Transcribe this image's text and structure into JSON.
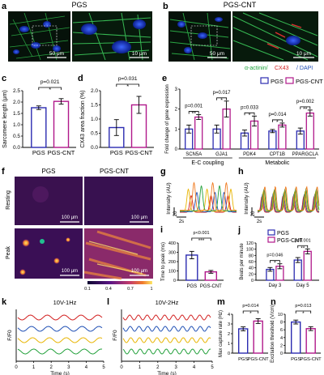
{
  "panel_letters": {
    "a": "a",
    "b": "b",
    "c": "c",
    "d": "d",
    "e": "e",
    "f": "f",
    "g": "g",
    "h": "h",
    "i": "i",
    "j": "j",
    "k": "k",
    "l": "l",
    "m": "m",
    "n": "n"
  },
  "micrographs": {
    "title_pgs": "PGS",
    "title_pgscnt": "PGS-CNT",
    "scale_a_left": "50 μm",
    "scale_a_right": "10 μm",
    "scale_b_left": "50 μm",
    "scale_b_right": "10 μm",
    "legend_actinin": "α-actinin/",
    "legend_cx43": " CX43",
    "legend_dapi": "/ DAPI"
  },
  "legend": {
    "pgs": "PGS",
    "pgscnt": "PGS-CNT"
  },
  "colors": {
    "pgs": "#2b2bb0",
    "pgscnt": "#b0188a",
    "line_red": "#d21f1f",
    "line_blue": "#1f4fb4",
    "line_yellow": "#e8b400",
    "line_green": "#22a03a",
    "line_orange": "#f07a20"
  },
  "calcium": {
    "title_pgs": "PGS",
    "title_pgscnt": "PGS-CNT",
    "row_resting": "Resting",
    "row_peak": "Peak",
    "scale": "100 μm",
    "cbar_ticks": [
      "0.1",
      "0.4",
      "0.7",
      "1"
    ]
  },
  "traces": {
    "ylabel": "Intensity (AU)",
    "tick20": "20",
    "xscale": "2s"
  },
  "pacing": {
    "k_title": "10V-1Hz",
    "l_title": "10V-2Hz",
    "ylabel": "F/F0",
    "xlabel": "Time (s)",
    "xticks": [
      "0",
      "1",
      "2",
      "3",
      "4",
      "5"
    ]
  },
  "chart_data": [
    {
      "panel": "c",
      "type": "bar",
      "categories": [
        "PGS",
        "PGS-CNT"
      ],
      "values": [
        1.75,
        2.03
      ],
      "errors": [
        0.08,
        0.12
      ],
      "ylabel": "Sarcomere length (μm)",
      "ylim": [
        0,
        2.5
      ],
      "yticks": [
        "0.0",
        "0.5",
        "1.0",
        "1.5",
        "2.0",
        "2.5"
      ],
      "annotation": "p=0.021",
      "star": "*"
    },
    {
      "panel": "d",
      "type": "bar",
      "categories": [
        "PGS",
        "PGS-CNT"
      ],
      "values": [
        0.7,
        1.5
      ],
      "errors": [
        0.28,
        0.3
      ],
      "ylabel": "CX43 area fraction (%)",
      "ylim": [
        0,
        2.0
      ],
      "yticks": [
        "0.0",
        "0.5",
        "1.0",
        "1.5",
        "2.0"
      ],
      "annotation": "p=0.031",
      "star": "*"
    },
    {
      "panel": "e",
      "type": "bar",
      "categories": [
        "SCN5A",
        "GJA1",
        "PDK4",
        "CPT1B",
        "PPARGCLA"
      ],
      "series": [
        {
          "name": "PGS",
          "values": [
            1.0,
            1.0,
            0.8,
            0.9,
            0.9
          ]
        },
        {
          "name": "PGS-CNT",
          "values": [
            1.6,
            2.0,
            1.4,
            1.2,
            1.8
          ]
        }
      ],
      "errors": [
        [
          0.2,
          0.2,
          0.15,
          0.08,
          0.15
        ],
        [
          0.12,
          0.4,
          0.25,
          0.1,
          0.15
        ]
      ],
      "ylabel": "Fold change of gene expression",
      "ylim": [
        0,
        3
      ],
      "yticks": [
        "0",
        "1",
        "2",
        "3"
      ],
      "annotations": [
        "p=0.001",
        "p=0.017",
        "p=0.033",
        "p=0.014",
        "p=0.002"
      ],
      "stars": [
        "**",
        "*",
        "*",
        "*",
        "**"
      ],
      "groups": [
        "E-C coupling",
        "Metabolic"
      ]
    },
    {
      "panel": "i",
      "type": "bar",
      "categories": [
        "PGS",
        "PGS-CNT"
      ],
      "values": [
        270,
        90
      ],
      "errors": [
        40,
        15
      ],
      "ylabel": "Time to peak (ms)",
      "ylim": [
        0,
        400
      ],
      "yticks": [
        "0",
        "100",
        "200",
        "300",
        "400"
      ],
      "annotation": "p<0.001",
      "star": "***"
    },
    {
      "panel": "j",
      "type": "bar",
      "categories": [
        "Day 3",
        "Day 5"
      ],
      "series": [
        {
          "name": "PGS",
          "values": [
            35,
            65
          ]
        },
        {
          "name": "PGS-CNT",
          "values": [
            45,
            93
          ]
        }
      ],
      "errors": [
        [
          6,
          8
        ],
        [
          8,
          8
        ]
      ],
      "ylabel": "Beats per minute",
      "ylim": [
        0,
        120
      ],
      "yticks": [
        "0",
        "20",
        "40",
        "60",
        "80",
        "100",
        "120"
      ],
      "annotations": [
        "p=0.046",
        "p=0.001"
      ],
      "stars": [
        "*",
        "**"
      ]
    },
    {
      "panel": "m",
      "type": "bar",
      "categories": [
        "PGS",
        "PGS-CNT"
      ],
      "values": [
        2.5,
        3.3
      ],
      "errors": [
        0.2,
        0.25
      ],
      "ylabel": "Max capture rate (Hz)",
      "ylim": [
        0,
        4
      ],
      "yticks": [
        "0",
        "1",
        "2",
        "3",
        "4"
      ],
      "annotation": "p=0.014",
      "star": "*"
    },
    {
      "panel": "n",
      "type": "bar",
      "categories": [
        "PGS",
        "PGS-CNT"
      ],
      "values": [
        8.0,
        6.3
      ],
      "errors": [
        0.5,
        0.5
      ],
      "ylabel": "Excitation threshold (V/cm)",
      "ylim": [
        0,
        10
      ],
      "yticks": [
        "0",
        "2",
        "4",
        "6",
        "8",
        "10"
      ],
      "annotation": "p=0.013",
      "star": "*"
    }
  ]
}
